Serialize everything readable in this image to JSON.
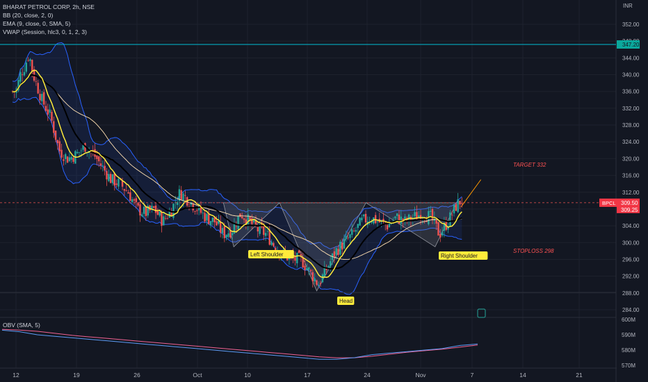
{
  "header": {
    "title": "BHARAT PETROL CORP, 2h, NSE",
    "bb": "BB (20, close, 2, 0)",
    "ema": "EMA (9, close, 0, SMA, 5)",
    "vwap": "VWAP (Session, hlc3, 0, 1, 2, 3)"
  },
  "obv_label": "OBV (SMA, 5)",
  "currency": "INR",
  "price_axis": {
    "ticks": [
      352,
      348,
      344,
      340,
      336,
      332,
      328,
      324,
      320,
      316,
      312,
      308,
      304,
      300,
      296,
      292,
      288,
      284
    ],
    "labels": [
      "352.00",
      "348.00",
      "344.00",
      "340.00",
      "336.00",
      "332.00",
      "328.00",
      "324.00",
      "320.00",
      "316.00",
      "312.00",
      "308.00",
      "304.00",
      "300.00",
      "296.00",
      "292.00",
      "288.00",
      "284.00"
    ],
    "marker_347": "347.20",
    "last_price": "309.50",
    "last_price2": "309.25",
    "symbol": "BPCL"
  },
  "obv_axis": {
    "labels": [
      "600M",
      "590M",
      "580M",
      "570M"
    ],
    "values": [
      600,
      590,
      580,
      570
    ]
  },
  "time_axis": {
    "labels": [
      "12",
      "19",
      "26",
      "Oct",
      "10",
      "17",
      "24",
      "Nov",
      "7",
      "14",
      "21"
    ]
  },
  "annotations": {
    "left_shoulder": "Left Shoulder",
    "head": "Head",
    "right_shoulder": "Right Shoulder",
    "target": "TARGET 332",
    "stoploss": "STOPLOSS 298"
  },
  "colors": {
    "up": "#26a69a",
    "down": "#ef5350",
    "ema": "#ffeb3b",
    "vwap": "#000000",
    "bb_band": "#2962ff",
    "ma_white": "#ffe0b2",
    "level_line": "#00bcd4",
    "obv": "#5b9cf6",
    "obv_ma": "#f06292"
  },
  "chart_data": {
    "type": "candlestick",
    "symbol": "BHARAT PETROL CORP",
    "interval": "2h",
    "exchange": "NSE",
    "price_range": [
      282,
      356
    ],
    "price_path": [
      [
        12,
        336
      ],
      [
        12.5,
        340
      ],
      [
        13,
        342
      ],
      [
        13.5,
        345
      ],
      [
        14,
        340
      ],
      [
        14.5,
        337
      ],
      [
        15,
        334
      ],
      [
        16,
        330
      ],
      [
        16.5,
        326
      ],
      [
        17,
        322
      ],
      [
        18,
        320
      ],
      [
        19,
        321
      ],
      [
        20,
        323
      ],
      [
        21,
        321
      ],
      [
        22,
        318
      ],
      [
        23,
        315
      ],
      [
        24,
        314
      ],
      [
        25,
        312
      ],
      [
        26,
        308
      ],
      [
        27,
        307
      ],
      [
        28,
        308
      ],
      [
        29,
        305
      ],
      [
        30,
        308
      ],
      [
        31,
        312
      ],
      [
        32,
        310
      ],
      [
        33,
        308
      ],
      [
        34,
        306
      ],
      [
        35,
        305
      ],
      [
        36,
        302
      ],
      [
        37,
        303
      ],
      [
        38,
        307
      ],
      [
        39,
        305
      ],
      [
        40,
        303
      ],
      [
        41,
        302
      ],
      [
        42,
        299
      ],
      [
        43,
        297
      ],
      [
        44,
        296
      ],
      [
        45,
        296
      ],
      [
        46,
        293
      ],
      [
        47,
        290
      ],
      [
        48,
        294
      ],
      [
        49,
        298
      ],
      [
        50,
        300
      ],
      [
        51,
        302
      ],
      [
        52,
        305
      ],
      [
        53,
        306
      ],
      [
        54,
        305
      ],
      [
        55,
        304
      ],
      [
        56,
        306
      ],
      [
        57,
        305
      ],
      [
        58,
        306
      ],
      [
        59,
        307
      ],
      [
        60,
        306
      ],
      [
        61,
        302
      ],
      [
        62,
        305
      ],
      [
        63,
        309
      ],
      [
        63.5,
        310
      ]
    ],
    "levels": {
      "resistance": 347.2,
      "neckline": 309.5,
      "target": 332,
      "stoploss": 298
    },
    "pattern": {
      "name": "inverse head and shoulders",
      "left_shoulder": 299,
      "head": 288.5,
      "right_shoulder": 299
    },
    "obv": [
      593,
      592,
      590,
      589,
      588,
      587,
      586,
      585,
      584,
      583,
      582,
      581,
      580,
      579,
      578,
      577,
      576,
      575,
      574,
      574,
      575,
      577,
      578,
      579,
      580,
      581,
      583,
      584
    ]
  }
}
